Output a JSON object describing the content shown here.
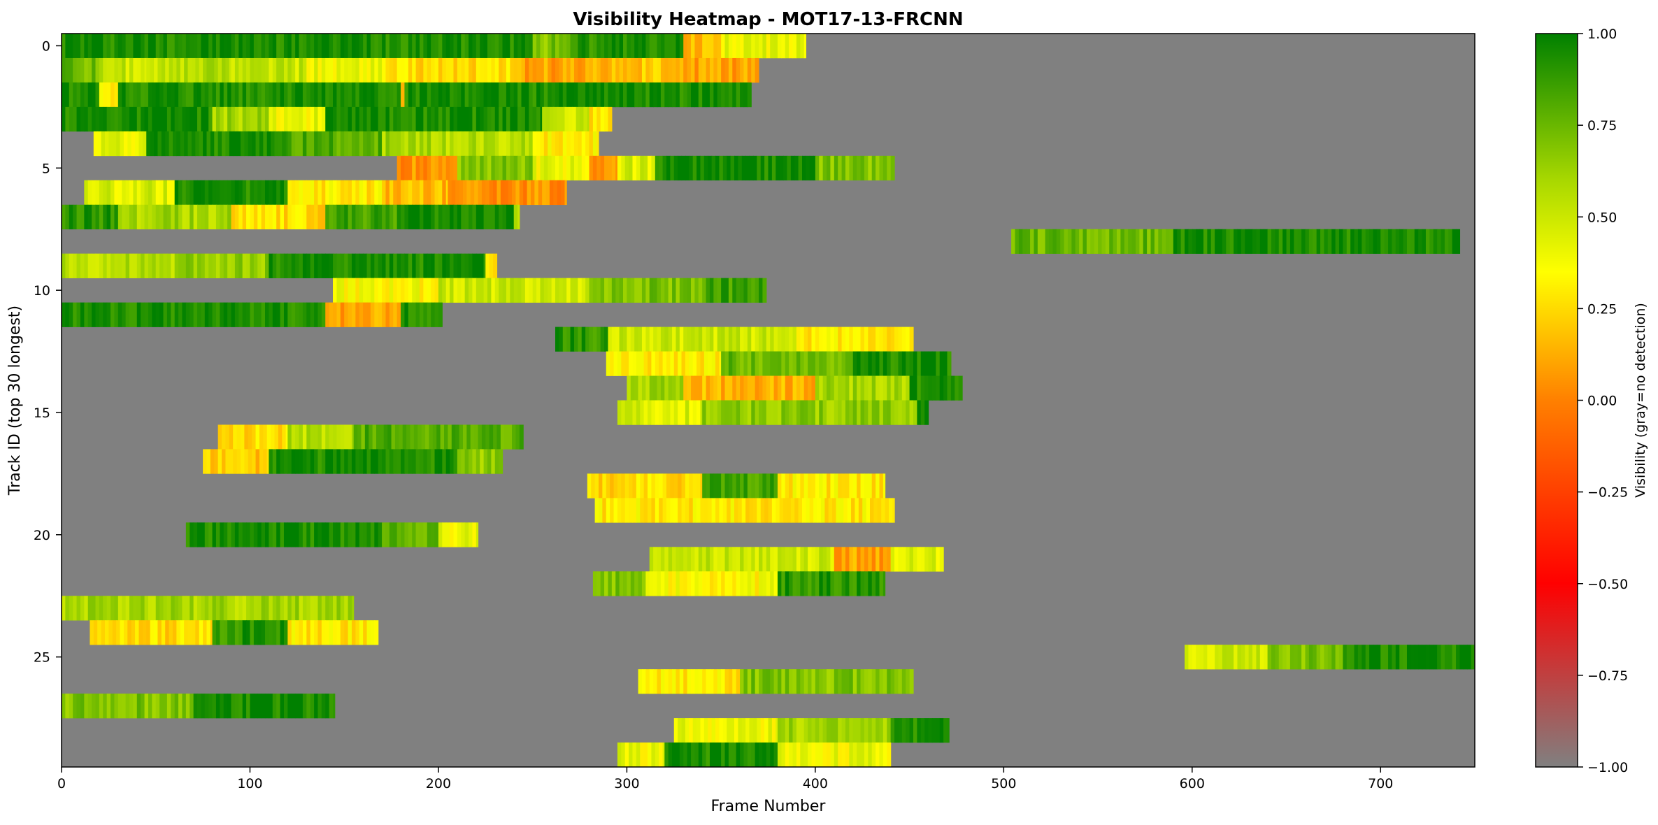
{
  "chart_data": {
    "type": "heatmap",
    "title": "Visibility Heatmap - MOT17-13-FRCNN",
    "xlabel": "Frame Number",
    "ylabel": "Track ID (top 30 longest)",
    "xlim": [
      0,
      750
    ],
    "ylim": [
      29.5,
      -0.5
    ],
    "x_ticks": [
      0,
      100,
      200,
      300,
      400,
      500,
      600,
      700
    ],
    "y_ticks": [
      0,
      5,
      10,
      15,
      20,
      25
    ],
    "grid": false,
    "missing_color": "#808080",
    "colorbar": {
      "label": "Visibility (gray=no detection)",
      "range": [
        -1,
        1
      ],
      "ticks": [
        "1.00",
        "0.75",
        "0.50",
        "0.25",
        "0.00",
        "−0.25",
        "−0.50",
        "−0.75",
        "−1.00"
      ],
      "colors": [
        {
          "v": -1.0,
          "c": "#808080"
        },
        {
          "v": -0.5,
          "c": "#ff0000"
        },
        {
          "v": 0.0,
          "c": "#ff8000"
        },
        {
          "v": 0.35,
          "c": "#ffff00"
        },
        {
          "v": 0.6,
          "c": "#a8d800"
        },
        {
          "v": 1.0,
          "c": "#008000"
        }
      ]
    },
    "tracks": [
      {
        "row": 0,
        "segments": [
          [
            0,
            250,
            0.95
          ],
          [
            250,
            270,
            0.7
          ],
          [
            270,
            290,
            0.88
          ],
          [
            290,
            330,
            0.95
          ],
          [
            330,
            350,
            0.15
          ],
          [
            350,
            395,
            0.4
          ]
        ]
      },
      {
        "row": 1,
        "segments": [
          [
            0,
            20,
            0.75
          ],
          [
            20,
            45,
            0.5
          ],
          [
            45,
            90,
            0.55
          ],
          [
            90,
            130,
            0.5
          ],
          [
            130,
            170,
            0.4
          ],
          [
            170,
            240,
            0.25
          ],
          [
            240,
            290,
            0.1
          ],
          [
            290,
            320,
            0.2
          ],
          [
            320,
            370,
            0.1
          ]
        ]
      },
      {
        "row": 2,
        "segments": [
          [
            0,
            20,
            0.95
          ],
          [
            20,
            30,
            0.3
          ],
          [
            30,
            180,
            0.95
          ],
          [
            180,
            182,
            0.1
          ],
          [
            182,
            366,
            0.95
          ]
        ]
      },
      {
        "row": 3,
        "segments": [
          [
            0,
            80,
            0.95
          ],
          [
            80,
            110,
            0.6
          ],
          [
            110,
            140,
            0.4
          ],
          [
            140,
            255,
            0.95
          ],
          [
            255,
            280,
            0.5
          ],
          [
            280,
            292,
            0.3
          ]
        ]
      },
      {
        "row": 4,
        "segments": [
          [
            17,
            45,
            0.4
          ],
          [
            45,
            120,
            0.95
          ],
          [
            120,
            170,
            0.8
          ],
          [
            170,
            200,
            0.6
          ],
          [
            200,
            250,
            0.55
          ],
          [
            250,
            285,
            0.3
          ]
        ]
      },
      {
        "row": 5,
        "segments": [
          [
            178,
            210,
            0.05
          ],
          [
            210,
            250,
            0.7
          ],
          [
            250,
            280,
            0.4
          ],
          [
            280,
            295,
            0.1
          ],
          [
            295,
            315,
            0.45
          ],
          [
            315,
            400,
            0.95
          ],
          [
            400,
            442,
            0.7
          ]
        ]
      },
      {
        "row": 6,
        "segments": [
          [
            12,
            60,
            0.45
          ],
          [
            60,
            120,
            0.95
          ],
          [
            120,
            170,
            0.3
          ],
          [
            170,
            205,
            0.15
          ],
          [
            205,
            268,
            0.05
          ]
        ]
      },
      {
        "row": 7,
        "segments": [
          [
            0,
            30,
            0.9
          ],
          [
            30,
            90,
            0.6
          ],
          [
            90,
            140,
            0.25
          ],
          [
            140,
            180,
            0.85
          ],
          [
            180,
            240,
            0.95
          ],
          [
            240,
            243,
            0.5
          ]
        ]
      },
      {
        "row": 8,
        "segments": [
          [
            504,
            590,
            0.75
          ],
          [
            590,
            742,
            0.95
          ]
        ]
      },
      {
        "row": 9,
        "segments": [
          [
            0,
            60,
            0.55
          ],
          [
            60,
            110,
            0.65
          ],
          [
            110,
            225,
            0.95
          ],
          [
            225,
            231,
            0.3
          ]
        ]
      },
      {
        "row": 10,
        "segments": [
          [
            144,
            200,
            0.35
          ],
          [
            200,
            280,
            0.5
          ],
          [
            280,
            340,
            0.7
          ],
          [
            340,
            374,
            0.85
          ]
        ]
      },
      {
        "row": 11,
        "segments": [
          [
            0,
            140,
            0.95
          ],
          [
            140,
            180,
            0.1
          ],
          [
            180,
            200,
            0.95
          ],
          [
            200,
            202,
            0.95
          ]
        ]
      },
      {
        "row": 12,
        "segments": [
          [
            262,
            290,
            0.9
          ],
          [
            290,
            390,
            0.5
          ],
          [
            390,
            452,
            0.3
          ]
        ]
      },
      {
        "row": 13,
        "segments": [
          [
            289,
            350,
            0.3
          ],
          [
            350,
            420,
            0.75
          ],
          [
            420,
            472,
            0.95
          ]
        ]
      },
      {
        "row": 14,
        "segments": [
          [
            300,
            330,
            0.6
          ],
          [
            330,
            400,
            0.15
          ],
          [
            400,
            450,
            0.6
          ],
          [
            450,
            478,
            0.95
          ]
        ]
      },
      {
        "row": 15,
        "segments": [
          [
            295,
            340,
            0.45
          ],
          [
            340,
            454,
            0.65
          ],
          [
            454,
            460,
            0.95
          ]
        ]
      },
      {
        "row": 16,
        "segments": [
          [
            83,
            120,
            0.25
          ],
          [
            120,
            155,
            0.55
          ],
          [
            155,
            245,
            0.8
          ]
        ]
      },
      {
        "row": 17,
        "segments": [
          [
            75,
            110,
            0.2
          ],
          [
            110,
            210,
            0.95
          ],
          [
            210,
            234,
            0.65
          ]
        ]
      },
      {
        "row": 18,
        "segments": [
          [
            279,
            340,
            0.25
          ],
          [
            340,
            380,
            0.85
          ],
          [
            380,
            437,
            0.3
          ]
        ]
      },
      {
        "row": 19,
        "segments": [
          [
            283,
            442,
            0.3
          ]
        ]
      },
      {
        "row": 20,
        "segments": [
          [
            66,
            170,
            0.95
          ],
          [
            170,
            200,
            0.75
          ],
          [
            200,
            221,
            0.4
          ]
        ]
      },
      {
        "row": 21,
        "segments": [
          [
            312,
            360,
            0.5
          ],
          [
            360,
            410,
            0.5
          ],
          [
            410,
            440,
            0.1
          ],
          [
            440,
            468,
            0.45
          ]
        ]
      },
      {
        "row": 22,
        "segments": [
          [
            282,
            310,
            0.7
          ],
          [
            310,
            380,
            0.35
          ],
          [
            380,
            437,
            0.9
          ]
        ]
      },
      {
        "row": 23,
        "segments": [
          [
            0,
            155,
            0.6
          ]
        ]
      },
      {
        "row": 24,
        "segments": [
          [
            15,
            80,
            0.25
          ],
          [
            80,
            120,
            0.9
          ],
          [
            120,
            168,
            0.3
          ]
        ]
      },
      {
        "row": 25,
        "segments": [
          [
            596,
            640,
            0.5
          ],
          [
            640,
            680,
            0.7
          ],
          [
            680,
            750,
            0.95
          ]
        ]
      },
      {
        "row": 26,
        "segments": [
          [
            306,
            360,
            0.3
          ],
          [
            360,
            452,
            0.7
          ]
        ]
      },
      {
        "row": 27,
        "segments": [
          [
            0,
            70,
            0.7
          ],
          [
            70,
            145,
            0.95
          ]
        ]
      },
      {
        "row": 28,
        "segments": [
          [
            325,
            380,
            0.4
          ],
          [
            380,
            440,
            0.6
          ],
          [
            440,
            471,
            0.9
          ]
        ]
      },
      {
        "row": 29,
        "segments": [
          [
            295,
            320,
            0.4
          ],
          [
            320,
            380,
            0.95
          ],
          [
            380,
            440,
            0.4
          ]
        ]
      }
    ]
  }
}
